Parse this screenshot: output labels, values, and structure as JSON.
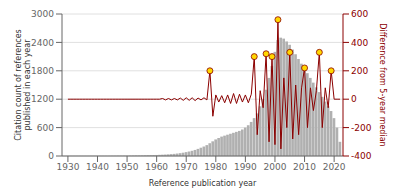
{
  "chart_data": {
    "type": "bar",
    "xlabel": "Reference publication year",
    "ylabel": "Citation count of references\npublished in each year",
    "y2label": "Difference from 5‑year median",
    "xlim": [
      1928,
      2023
    ],
    "xticks": [
      1930,
      1940,
      1950,
      1960,
      1970,
      1980,
      1990,
      2000,
      2010,
      2020
    ],
    "ylim": [
      0,
      3000
    ],
    "yticks": [
      0,
      600,
      1200,
      1800,
      2400,
      3000
    ],
    "y2lim": [
      -400,
      600
    ],
    "y2ticks": [
      -400,
      -200,
      0,
      200,
      400,
      600
    ],
    "grid": true,
    "x": [
      1930,
      1931,
      1932,
      1933,
      1934,
      1935,
      1936,
      1937,
      1938,
      1939,
      1940,
      1941,
      1942,
      1943,
      1944,
      1945,
      1946,
      1947,
      1948,
      1949,
      1950,
      1951,
      1952,
      1953,
      1954,
      1955,
      1956,
      1957,
      1958,
      1959,
      1960,
      1961,
      1962,
      1963,
      1964,
      1965,
      1966,
      1967,
      1968,
      1969,
      1970,
      1971,
      1972,
      1973,
      1974,
      1975,
      1976,
      1977,
      1978,
      1979,
      1980,
      1981,
      1982,
      1983,
      1984,
      1985,
      1986,
      1987,
      1988,
      1989,
      1990,
      1991,
      1992,
      1993,
      1994,
      1995,
      1996,
      1997,
      1998,
      1999,
      2000,
      2001,
      2002,
      2003,
      2004,
      2005,
      2006,
      2007,
      2008,
      2009,
      2010,
      2011,
      2012,
      2013,
      2014,
      2015,
      2016,
      2017,
      2018,
      2019,
      2020,
      2021,
      2022
    ],
    "series": [
      {
        "type": "bar",
        "color": "#b0b0b0",
        "values": [
          2,
          2,
          2,
          2,
          2,
          2,
          2,
          2,
          3,
          3,
          3,
          3,
          3,
          3,
          3,
          4,
          4,
          5,
          5,
          6,
          7,
          8,
          9,
          10,
          11,
          12,
          14,
          16,
          18,
          20,
          22,
          25,
          28,
          31,
          35,
          40,
          45,
          52,
          60,
          70,
          82,
          95,
          110,
          128,
          150,
          175,
          200,
          230,
          270,
          310,
          350,
          380,
          410,
          430,
          450,
          470,
          490,
          510,
          530,
          560,
          600,
          650,
          720,
          800,
          900,
          1050,
          1200,
          1400,
          1650,
          1900,
          2200,
          2450,
          2500,
          2480,
          2420,
          2350,
          2250,
          2150,
          2050,
          1950,
          1850,
          1750,
          1650,
          1550,
          1450,
          1350,
          1250,
          1150,
          1050,
          950,
          800,
          600,
          300
        ]
      },
      {
        "type": "line",
        "axis": "y2",
        "color": "#8b0000",
        "values": [
          0,
          0,
          0,
          0,
          0,
          0,
          0,
          0,
          0,
          0,
          0,
          0,
          0,
          0,
          0,
          0,
          0,
          0,
          0,
          0,
          0,
          0,
          0,
          0,
          0,
          0,
          0,
          0,
          0,
          0,
          0,
          0,
          5,
          -5,
          5,
          -5,
          5,
          -5,
          8,
          -8,
          10,
          -8,
          10,
          -10,
          8,
          -5,
          10,
          -5,
          200,
          -120,
          30,
          -20,
          25,
          -25,
          30,
          -30,
          40,
          -30,
          35,
          -20,
          30,
          -25,
          35,
          300,
          -250,
          60,
          -60,
          320,
          -300,
          300,
          -320,
          560,
          -350,
          150,
          -200,
          330,
          -280,
          100,
          -250,
          80,
          220,
          -200,
          80,
          -80,
          60,
          330,
          -200,
          80,
          -60,
          200,
          0,
          0,
          0
        ]
      },
      {
        "type": "scatter",
        "axis": "y2",
        "color": "#FFD700",
        "marker": "circle",
        "values": [
          null,
          null,
          null,
          null,
          null,
          null,
          null,
          null,
          null,
          null,
          null,
          null,
          null,
          null,
          null,
          null,
          null,
          null,
          null,
          null,
          null,
          null,
          null,
          null,
          null,
          null,
          null,
          null,
          null,
          null,
          null,
          null,
          null,
          null,
          null,
          null,
          null,
          null,
          null,
          null,
          null,
          null,
          null,
          null,
          null,
          null,
          null,
          null,
          200,
          null,
          null,
          null,
          null,
          null,
          null,
          null,
          null,
          null,
          null,
          null,
          null,
          null,
          null,
          300,
          null,
          null,
          null,
          320,
          null,
          300,
          null,
          560,
          null,
          null,
          null,
          330,
          null,
          null,
          null,
          null,
          220,
          null,
          null,
          null,
          null,
          330,
          null,
          null,
          null,
          200,
          null,
          null,
          null
        ]
      }
    ]
  }
}
